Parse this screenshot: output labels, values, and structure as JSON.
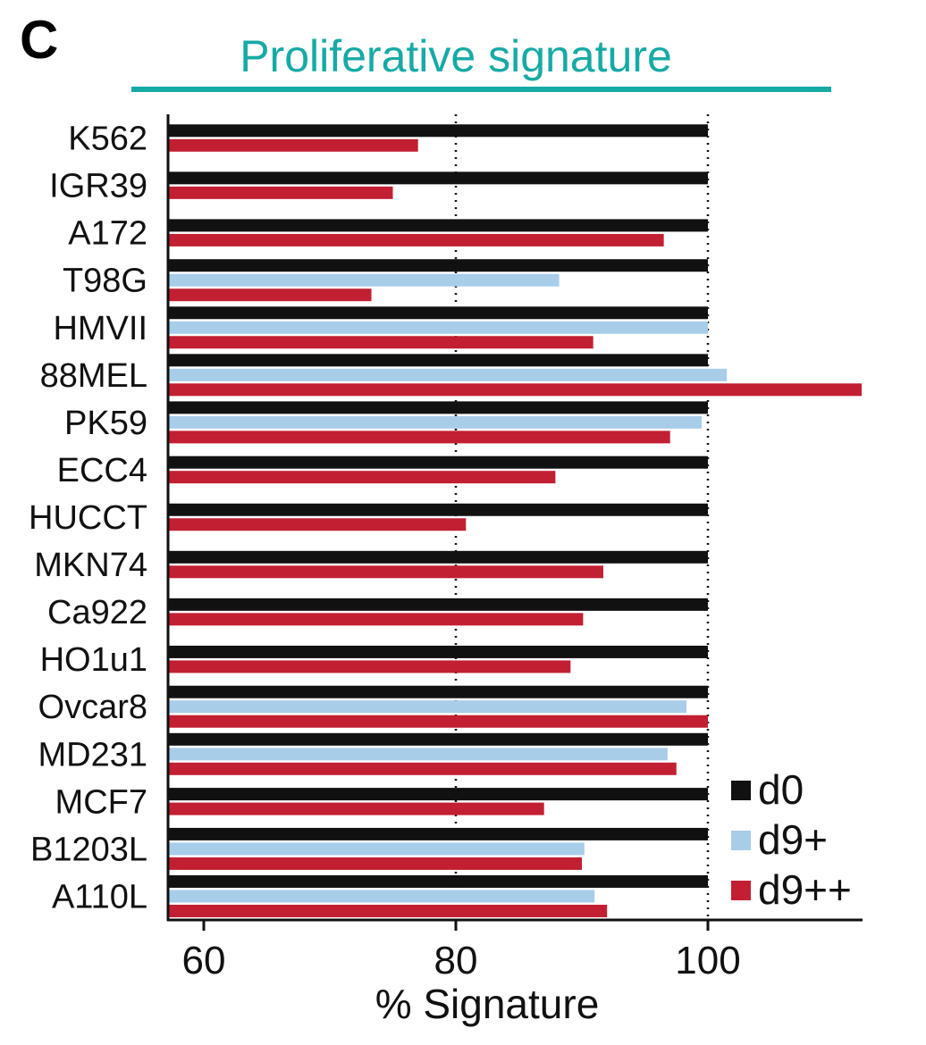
{
  "panel_label": "C",
  "chart_data": {
    "type": "bar",
    "orientation": "horizontal",
    "title": "Proliferative signature",
    "xlabel": "% Signature",
    "ylabel": "",
    "xlim": [
      57.5,
      112.5
    ],
    "xticks": [
      60,
      80,
      100
    ],
    "reference_lines": [
      80,
      100
    ],
    "grid": false,
    "legend_position": "bottom-right",
    "categories": [
      "K562",
      "IGR39",
      "A172",
      "T98G",
      "HMVII",
      "88MEL",
      "PK59",
      "ECC4",
      "HUCCT",
      "MKN74",
      "Ca922",
      "HO1u1",
      "Ovcar8",
      "MD231",
      "MCF7",
      "B1203L",
      "A110L"
    ],
    "series": [
      {
        "name": "d0",
        "color": "#111111",
        "values": [
          100,
          100,
          100,
          100,
          100,
          100,
          100,
          100,
          100,
          100,
          100,
          100,
          100,
          100,
          100,
          100,
          100
        ]
      },
      {
        "name": "d9+",
        "color": "#a8cde9",
        "values": [
          null,
          null,
          null,
          88.2,
          100,
          101.5,
          99.5,
          null,
          null,
          null,
          null,
          null,
          98.3,
          96.8,
          null,
          90.2,
          91
        ]
      },
      {
        "name": "d9++",
        "color": "#c21f32",
        "values": [
          77,
          75,
          96.5,
          73.3,
          90.9,
          112.2,
          97,
          87.9,
          80.8,
          91.7,
          90.1,
          89.1,
          100,
          97.5,
          87,
          90,
          92
        ]
      }
    ]
  }
}
